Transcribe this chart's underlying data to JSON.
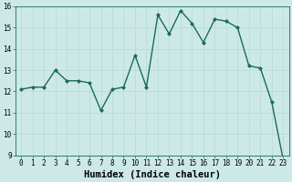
{
  "x": [
    0,
    1,
    2,
    3,
    4,
    5,
    6,
    7,
    8,
    9,
    10,
    11,
    12,
    13,
    14,
    15,
    16,
    17,
    18,
    19,
    20,
    21,
    22,
    23
  ],
  "y": [
    12.1,
    12.2,
    12.2,
    13.0,
    12.5,
    12.5,
    12.4,
    11.1,
    12.1,
    12.2,
    13.7,
    12.2,
    15.6,
    14.7,
    15.8,
    15.2,
    14.3,
    15.4,
    15.3,
    15.0,
    13.2,
    13.1,
    11.5,
    8.8
  ],
  "xlabel": "Humidex (Indice chaleur)",
  "ylim": [
    9,
    16
  ],
  "xlim": [
    -0.5,
    23.5
  ],
  "yticks": [
    9,
    10,
    11,
    12,
    13,
    14,
    15,
    16
  ],
  "xticks": [
    0,
    1,
    2,
    3,
    4,
    5,
    6,
    7,
    8,
    9,
    10,
    11,
    12,
    13,
    14,
    15,
    16,
    17,
    18,
    19,
    20,
    21,
    22,
    23
  ],
  "line_color": "#1a6b5a",
  "marker": "D",
  "marker_size": 2.0,
  "bg_color": "#cce9e8",
  "grid_major_color": "#b8d8d7",
  "grid_minor_color": "#d4ecea",
  "tick_label_fontsize": 5.5,
  "xlabel_fontsize": 7.5,
  "line_width": 1.0
}
